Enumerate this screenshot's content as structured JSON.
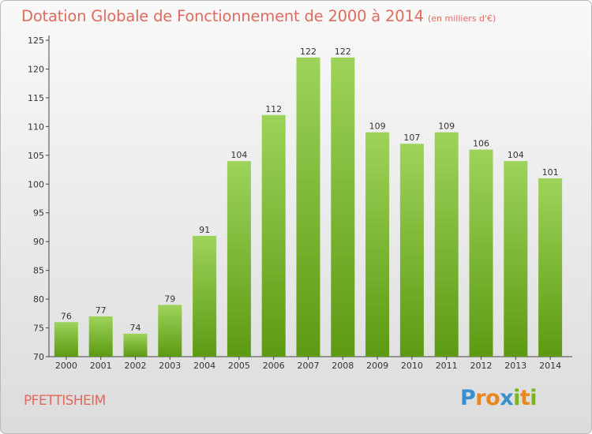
{
  "header": {
    "title": "Dotation Globale de Fonctionnement de 2000 à 2014",
    "subtitle": "(en milliers d'€)"
  },
  "footer": {
    "commune": "PFETTISHEIM",
    "logo": {
      "text": "Proxiti",
      "colors": [
        "#3a8fd1",
        "#e8861f",
        "#e8861f",
        "#3a8fd1",
        "#7ab51d",
        "#e8861f",
        "#7ab51d"
      ]
    }
  },
  "chart_data": {
    "type": "bar",
    "categories": [
      "2000",
      "2001",
      "2002",
      "2003",
      "2004",
      "2005",
      "2006",
      "2007",
      "2008",
      "2009",
      "2010",
      "2011",
      "2012",
      "2013",
      "2014"
    ],
    "values": [
      76,
      77,
      74,
      79,
      91,
      104,
      112,
      122,
      122,
      109,
      107,
      109,
      106,
      104,
      101
    ],
    "ylim": [
      70,
      125
    ],
    "yticks": [
      70,
      75,
      80,
      85,
      90,
      95,
      100,
      105,
      110,
      115,
      120,
      125
    ],
    "grid": false,
    "bar_color_top": "#9dd35a",
    "bar_color_bottom": "#5d9a13",
    "text_color": "#e16a5e"
  }
}
